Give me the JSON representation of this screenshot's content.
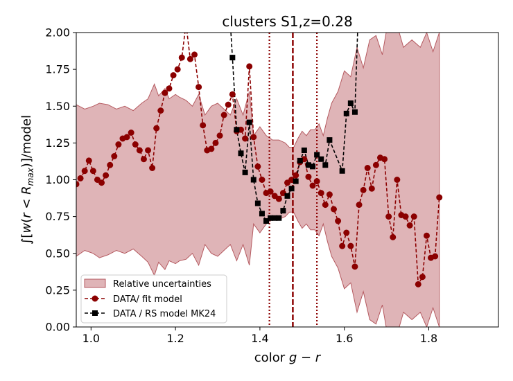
{
  "chart_data": {
    "type": "line",
    "title": "clusters S1,z=0.28",
    "xlabel": "color g − r",
    "ylabel": "∫[w(r < R_max)]/model",
    "xlim": [
      0.965,
      1.965
    ],
    "ylim": [
      0.0,
      2.0
    ],
    "xticks": [
      1.0,
      1.2,
      1.4,
      1.6,
      1.8
    ],
    "xtick_labels": [
      "1.0",
      "1.2",
      "1.4",
      "1.6",
      "1.8"
    ],
    "yticks": [
      0.0,
      0.25,
      0.5,
      0.75,
      1.0,
      1.25,
      1.5,
      1.75,
      2.0
    ],
    "ytick_labels": [
      "0.00",
      "0.25",
      "0.50",
      "0.75",
      "1.00",
      "1.25",
      "1.50",
      "1.75",
      "2.00"
    ],
    "grid": false,
    "legend_position": "lower-left",
    "vlines": [
      {
        "x": 1.4225,
        "style": "dotted",
        "color": "#8b0000"
      },
      {
        "x": 1.478,
        "style": "dashed",
        "color": "#8b0000"
      },
      {
        "x": 1.535,
        "style": "dotted",
        "color": "#8b0000"
      }
    ],
    "band": {
      "name": "Relative uncertainties",
      "color": "#c06a6f",
      "x": [
        0.965,
        0.985,
        1.005,
        1.02,
        1.04,
        1.06,
        1.08,
        1.1,
        1.12,
        1.135,
        1.15,
        1.16,
        1.175,
        1.185,
        1.2,
        1.21,
        1.225,
        1.24,
        1.255,
        1.27,
        1.285,
        1.3,
        1.315,
        1.33,
        1.345,
        1.36,
        1.375,
        1.385,
        1.4,
        1.415,
        1.43,
        1.445,
        1.46,
        1.47,
        1.48,
        1.49,
        1.5,
        1.51,
        1.52,
        1.53,
        1.54,
        1.55,
        1.56,
        1.57,
        1.585,
        1.6,
        1.615,
        1.63,
        1.645,
        1.66,
        1.675,
        1.69,
        1.705,
        1.72,
        1.74,
        1.76,
        1.78,
        1.795,
        1.81,
        1.825
      ],
      "upper": [
        1.51,
        1.48,
        1.5,
        1.52,
        1.51,
        1.48,
        1.5,
        1.47,
        1.52,
        1.55,
        1.65,
        1.57,
        1.62,
        1.55,
        1.58,
        1.56,
        1.54,
        1.5,
        1.58,
        1.44,
        1.5,
        1.52,
        1.48,
        1.44,
        1.55,
        1.44,
        1.6,
        1.3,
        1.36,
        1.3,
        1.27,
        1.27,
        1.25,
        1.22,
        1.22,
        1.28,
        1.33,
        1.3,
        1.34,
        1.34,
        1.38,
        1.3,
        1.42,
        1.52,
        1.6,
        1.74,
        1.7,
        1.9,
        1.76,
        1.95,
        1.98,
        1.85,
        2.1,
        2.1,
        1.9,
        1.95,
        1.9,
        2.0,
        1.87,
        2.0
      ],
      "lower": [
        0.48,
        0.52,
        0.5,
        0.47,
        0.49,
        0.52,
        0.5,
        0.53,
        0.48,
        0.44,
        0.35,
        0.44,
        0.39,
        0.45,
        0.43,
        0.45,
        0.46,
        0.5,
        0.42,
        0.56,
        0.5,
        0.48,
        0.52,
        0.56,
        0.45,
        0.56,
        0.42,
        0.7,
        0.64,
        0.7,
        0.73,
        0.73,
        0.75,
        0.78,
        0.78,
        0.72,
        0.67,
        0.7,
        0.66,
        0.66,
        0.62,
        0.7,
        0.58,
        0.48,
        0.4,
        0.26,
        0.3,
        0.1,
        0.24,
        0.05,
        0.02,
        0.15,
        -0.1,
        -0.1,
        0.1,
        0.05,
        0.1,
        0.0,
        0.13,
        0.0
      ]
    },
    "series": [
      {
        "name": "DATA/ fit model",
        "color": "#8b0000",
        "marker": "circle",
        "x": [
          0.965,
          0.975,
          0.985,
          0.995,
          1.005,
          1.015,
          1.025,
          1.035,
          1.045,
          1.055,
          1.065,
          1.075,
          1.085,
          1.095,
          1.105,
          1.115,
          1.125,
          1.135,
          1.145,
          1.155,
          1.165,
          1.175,
          1.185,
          1.195,
          1.205,
          1.215,
          1.225,
          1.235,
          1.245,
          1.255,
          1.265,
          1.275,
          1.285,
          1.295,
          1.305,
          1.315,
          1.325,
          1.335,
          1.345,
          1.355,
          1.365,
          1.375,
          1.385,
          1.395,
          1.405,
          1.415,
          1.425,
          1.435,
          1.445,
          1.455,
          1.465,
          1.475,
          1.485,
          1.495,
          1.505,
          1.515,
          1.525,
          1.535,
          1.545,
          1.555,
          1.565,
          1.575,
          1.585,
          1.595,
          1.605,
          1.615,
          1.625,
          1.635,
          1.645,
          1.655,
          1.665,
          1.675,
          1.685,
          1.695,
          1.705,
          1.715,
          1.725,
          1.735,
          1.745,
          1.755,
          1.765,
          1.775,
          1.785,
          1.795,
          1.805,
          1.815,
          1.825
        ],
        "y": [
          0.97,
          1.01,
          1.06,
          1.13,
          1.06,
          1.0,
          0.98,
          1.03,
          1.1,
          1.16,
          1.24,
          1.28,
          1.29,
          1.32,
          1.24,
          1.2,
          1.14,
          1.2,
          1.08,
          1.35,
          1.47,
          1.59,
          1.62,
          1.71,
          1.75,
          1.83,
          2.06,
          1.82,
          1.85,
          1.63,
          1.37,
          1.2,
          1.21,
          1.25,
          1.3,
          1.44,
          1.51,
          1.58,
          1.33,
          1.34,
          1.28,
          1.77,
          1.29,
          1.09,
          1.0,
          0.91,
          0.92,
          0.89,
          0.87,
          0.91,
          0.98,
          1.0,
          1.03,
          1.12,
          1.14,
          1.02,
          0.96,
          0.99,
          0.91,
          0.83,
          0.9,
          0.8,
          0.72,
          0.55,
          0.64,
          0.55,
          0.41,
          0.83,
          0.93,
          1.08,
          0.94,
          1.1,
          1.15,
          1.14,
          0.75,
          0.61,
          1.0,
          0.76,
          0.75,
          0.69,
          0.75,
          0.29,
          0.34,
          0.62,
          0.47,
          0.48,
          0.88
        ]
      },
      {
        "name": "DATA / RS model MK24",
        "color": "#000000",
        "marker": "square",
        "x": [
          1.325,
          1.335,
          1.345,
          1.355,
          1.365,
          1.375,
          1.385,
          1.395,
          1.405,
          1.415,
          1.425,
          1.435,
          1.445,
          1.455,
          1.465,
          1.475,
          1.485,
          1.495,
          1.505,
          1.515,
          1.525,
          1.535,
          1.545,
          1.555,
          1.565,
          1.595,
          1.605,
          1.615,
          1.625,
          1.635
        ],
        "y": [
          2.3,
          1.83,
          1.34,
          1.18,
          1.05,
          1.39,
          1.0,
          0.84,
          0.77,
          0.72,
          0.74,
          0.74,
          0.74,
          0.79,
          0.89,
          0.94,
          0.99,
          1.13,
          1.2,
          1.1,
          1.09,
          1.17,
          1.14,
          1.1,
          1.27,
          1.06,
          1.45,
          1.52,
          1.46,
          2.3
        ]
      }
    ]
  }
}
